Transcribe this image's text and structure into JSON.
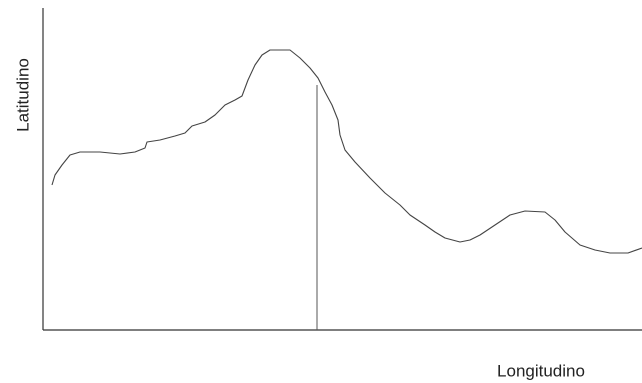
{
  "axes": {
    "y_label": "Latitudino",
    "x_label": "Longitudino"
  }
}
